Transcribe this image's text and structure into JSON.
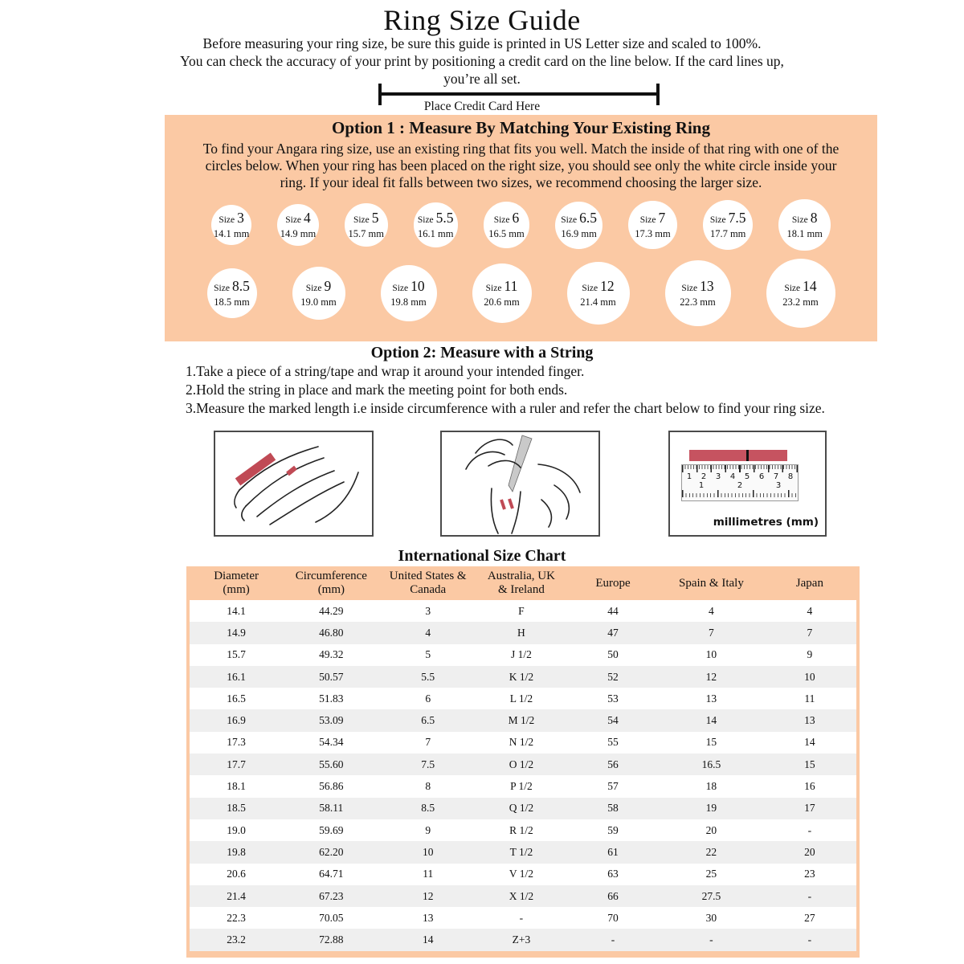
{
  "page": {
    "title": "Ring Size Guide",
    "intro_line1": "Before measuring your ring size, be sure this guide is printed in US Letter size and scaled to 100%.",
    "intro_line2": "You can check the accuracy of your print by positioning a credit card on the line below. If the card lines up,",
    "intro_line3": "you’re all set.",
    "credit_card_label": "Place Credit Card Here"
  },
  "colors": {
    "peach_background": "#FBC9A4",
    "table_alt_row": "#EFEFEF",
    "string_red": "#C04A55"
  },
  "option1": {
    "heading": "Option 1 : Measure By Matching Your Existing Ring",
    "body": "To find your Angara ring size, use an existing ring that fits you well. Match the inside of that ring with one of the circles below. When your ring has been placed on the right size, you should see only the white circle inside your ring. If your ideal fit falls between two sizes, we recommend choosing the larger size.",
    "size_word": "Size",
    "row1": [
      {
        "size": "3",
        "mm": "14.1 mm"
      },
      {
        "size": "4",
        "mm": "14.9 mm"
      },
      {
        "size": "5",
        "mm": "15.7 mm"
      },
      {
        "size": "5.5",
        "mm": "16.1 mm"
      },
      {
        "size": "6",
        "mm": "16.5 mm"
      },
      {
        "size": "6.5",
        "mm": "16.9 mm"
      },
      {
        "size": "7",
        "mm": "17.3 mm"
      },
      {
        "size": "7.5",
        "mm": "17.7 mm"
      },
      {
        "size": "8",
        "mm": "18.1 mm"
      }
    ],
    "row2": [
      {
        "size": "8.5",
        "mm": "18.5 mm"
      },
      {
        "size": "9",
        "mm": "19.0 mm"
      },
      {
        "size": "10",
        "mm": "19.8 mm"
      },
      {
        "size": "11",
        "mm": "20.6 mm"
      },
      {
        "size": "12",
        "mm": "21.4 mm"
      },
      {
        "size": "13",
        "mm": "22.3 mm"
      },
      {
        "size": "14",
        "mm": "23.2 mm"
      }
    ]
  },
  "option2": {
    "heading": "Option 2: Measure with a String",
    "steps": [
      "1.Take a piece of a string/tape and wrap it around your intended finger.",
      "2.Hold the string in place and mark the meeting point for both ends.",
      "3.Measure the marked length i.e inside circumference with a ruler and refer the chart below to find your ring size."
    ]
  },
  "illustrations": {
    "ruler_top_numbers": [
      "1",
      "2",
      "3",
      "4",
      "5",
      "6",
      "7",
      "8"
    ],
    "ruler_bottom_numbers": [
      "1",
      "2",
      "3"
    ],
    "ruler_label": "millimetres (mm)"
  },
  "chart": {
    "title": "International Size Chart",
    "headers": [
      "Diameter\n(mm)",
      "Circumference\n(mm)",
      "United States &\nCanada",
      "Australia, UK\n& Ireland",
      "Europe",
      "Spain & Italy",
      "Japan"
    ],
    "rows": [
      [
        "14.1",
        "44.29",
        "3",
        "F",
        "44",
        "4",
        "4"
      ],
      [
        "14.9",
        "46.80",
        "4",
        "H",
        "47",
        "7",
        "7"
      ],
      [
        "15.7",
        "49.32",
        "5",
        "J 1/2",
        "50",
        "10",
        "9"
      ],
      [
        "16.1",
        "50.57",
        "5.5",
        "K 1/2",
        "52",
        "12",
        "10"
      ],
      [
        "16.5",
        "51.83",
        "6",
        "L 1/2",
        "53",
        "13",
        "11"
      ],
      [
        "16.9",
        "53.09",
        "6.5",
        "M 1/2",
        "54",
        "14",
        "13"
      ],
      [
        "17.3",
        "54.34",
        "7",
        "N 1/2",
        "55",
        "15",
        "14"
      ],
      [
        "17.7",
        "55.60",
        "7.5",
        "O 1/2",
        "56",
        "16.5",
        "15"
      ],
      [
        "18.1",
        "56.86",
        "8",
        "P 1/2",
        "57",
        "18",
        "16"
      ],
      [
        "18.5",
        "58.11",
        "8.5",
        "Q 1/2",
        "58",
        "19",
        "17"
      ],
      [
        "19.0",
        "59.69",
        "9",
        "R 1/2",
        "59",
        "20",
        "-"
      ],
      [
        "19.8",
        "62.20",
        "10",
        "T 1/2",
        "61",
        "22",
        "20"
      ],
      [
        "20.6",
        "64.71",
        "11",
        "V 1/2",
        "63",
        "25",
        "23"
      ],
      [
        "21.4",
        "67.23",
        "12",
        "X 1/2",
        "66",
        "27.5",
        "-"
      ],
      [
        "22.3",
        "70.05",
        "13",
        "-",
        "70",
        "30",
        "27"
      ],
      [
        "23.2",
        "72.88",
        "14",
        "Z+3",
        "-",
        "-",
        "-"
      ]
    ]
  }
}
